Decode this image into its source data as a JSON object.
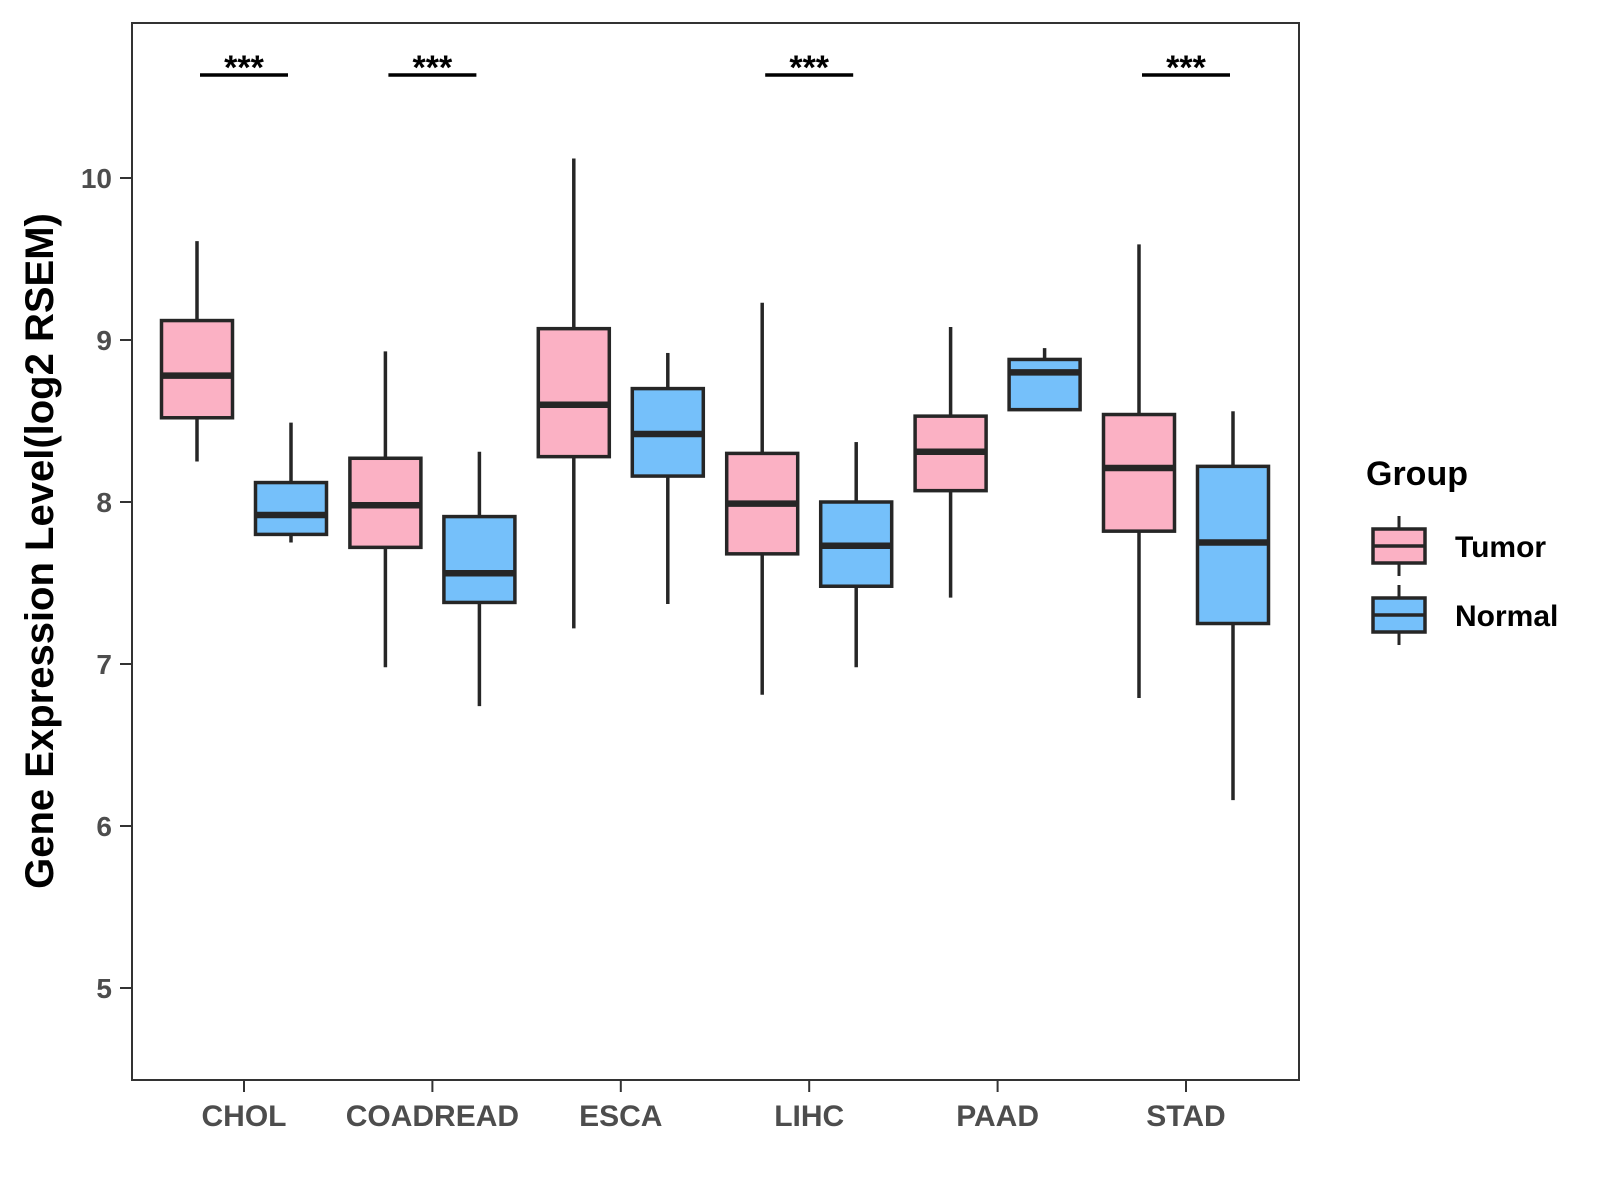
{
  "chart_data": {
    "type": "boxplot",
    "title": "",
    "xlabel": "",
    "ylabel": "Gene Expression Level(log2 RSEM)",
    "ylim": [
      4.45,
      10.95
    ],
    "yticks": [
      "5",
      "6",
      "7",
      "8",
      "9",
      "10"
    ],
    "categories": [
      "CHOL",
      "COADREAD",
      "ESCA",
      "LIHC",
      "PAAD",
      "STAD"
    ],
    "legend": {
      "title": "Group",
      "position": "right",
      "entries": [
        "Tumor",
        "Normal"
      ]
    },
    "series": [
      {
        "name": "Tumor",
        "color": "#fbb1c4",
        "boxes": [
          {
            "category": "CHOL",
            "min": 8.25,
            "q1": 8.52,
            "median": 8.78,
            "q3": 9.12,
            "max": 9.61
          },
          {
            "category": "COADREAD",
            "min": 6.98,
            "q1": 7.72,
            "median": 7.98,
            "q3": 8.27,
            "max": 8.93
          },
          {
            "category": "ESCA",
            "min": 7.22,
            "q1": 8.28,
            "median": 8.6,
            "q3": 9.07,
            "max": 10.12
          },
          {
            "category": "LIHC",
            "min": 6.81,
            "q1": 7.68,
            "median": 7.99,
            "q3": 8.3,
            "max": 9.23
          },
          {
            "category": "PAAD",
            "min": 7.41,
            "q1": 8.07,
            "median": 8.31,
            "q3": 8.53,
            "max": 9.08
          },
          {
            "category": "STAD",
            "min": 6.79,
            "q1": 7.82,
            "median": 8.21,
            "q3": 8.54,
            "max": 9.59
          }
        ]
      },
      {
        "name": "Normal",
        "color": "#75c0fa",
        "boxes": [
          {
            "category": "CHOL",
            "min": 7.75,
            "q1": 7.8,
            "median": 7.92,
            "q3": 8.12,
            "max": 8.49
          },
          {
            "category": "COADREAD",
            "min": 6.74,
            "q1": 7.38,
            "median": 7.56,
            "q3": 7.91,
            "max": 8.31
          },
          {
            "category": "ESCA",
            "min": 7.37,
            "q1": 8.16,
            "median": 8.42,
            "q3": 8.7,
            "max": 8.92
          },
          {
            "category": "LIHC",
            "min": 6.98,
            "q1": 7.48,
            "median": 7.73,
            "q3": 8.0,
            "max": 8.37
          },
          {
            "category": "PAAD",
            "min": 8.57,
            "q1": 8.57,
            "median": 8.8,
            "q3": 8.88,
            "max": 8.95
          },
          {
            "category": "STAD",
            "min": 6.16,
            "q1": 7.25,
            "median": 7.75,
            "q3": 8.22,
            "max": 8.56
          }
        ]
      }
    ],
    "significance": [
      {
        "category": "CHOL",
        "label": "***"
      },
      {
        "category": "COADREAD",
        "label": "***"
      },
      {
        "category": "LIHC",
        "label": "***"
      },
      {
        "category": "STAD",
        "label": "***"
      }
    ]
  }
}
